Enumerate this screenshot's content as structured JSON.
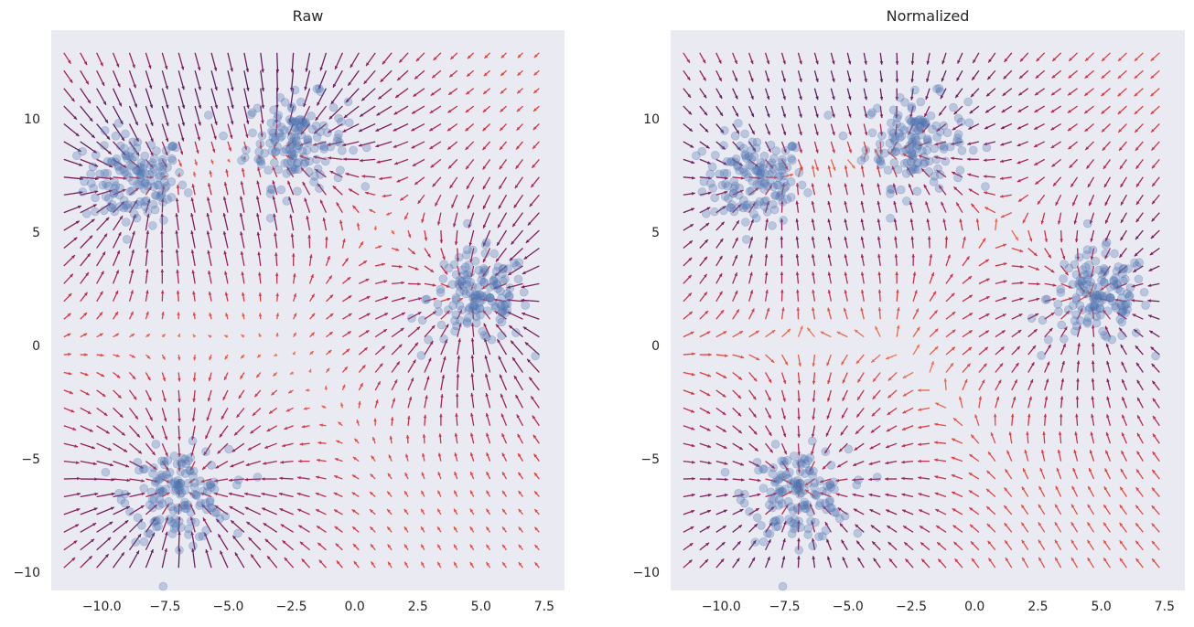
{
  "chart_data": [
    {
      "type": "scatter",
      "subtype": "quiver-with-scatter",
      "title": "Raw",
      "xlabel": "",
      "ylabel": "",
      "xlim": [
        -12.0,
        8.3
      ],
      "ylim": [
        -10.8,
        13.9
      ],
      "xticks": [
        -10.0,
        -7.5,
        -5.0,
        -2.5,
        0.0,
        2.5,
        5.0,
        7.5
      ],
      "xtick_labels": [
        "−10.0",
        "−7.5",
        "−5.0",
        "−2.5",
        "0.0",
        "2.5",
        "5.0",
        "7.5"
      ],
      "yticks": [
        -10,
        -5,
        0,
        5,
        10
      ],
      "ytick_labels": [
        "−10",
        "−5",
        "0",
        "5",
        "10"
      ],
      "grid": false,
      "background": "#eaeaf2",
      "point_color": "#4c72b0",
      "arrow_colormap": [
        "#5b1e5e",
        "#a3215a",
        "#e0383d",
        "#f07a50"
      ],
      "arrow_normalized": false,
      "quiver_grid": {
        "x_range": [
          -11.5,
          7.3
        ],
        "y_range": [
          -9.8,
          12.9
        ],
        "nx": 30,
        "ny": 30
      },
      "clusters": [
        {
          "center": [
            -8.7,
            7.3
          ],
          "n_points": 150
        },
        {
          "center": [
            -2.3,
            9.0
          ],
          "n_points": 150
        },
        {
          "center": [
            4.9,
            2.1
          ],
          "n_points": 150
        },
        {
          "center": [
            -7.0,
            -6.6
          ],
          "n_points": 150
        }
      ]
    },
    {
      "type": "scatter",
      "subtype": "quiver-with-scatter",
      "title": "Normalized",
      "xlabel": "",
      "ylabel": "",
      "xlim": [
        -12.0,
        8.3
      ],
      "ylim": [
        -10.8,
        13.9
      ],
      "xticks": [
        -10.0,
        -7.5,
        -5.0,
        -2.5,
        0.0,
        2.5,
        5.0,
        7.5
      ],
      "xtick_labels": [
        "−10.0",
        "−7.5",
        "−5.0",
        "−2.5",
        "0.0",
        "2.5",
        "5.0",
        "7.5"
      ],
      "yticks": [
        -10,
        -5,
        0,
        5,
        10
      ],
      "ytick_labels": [
        "−10",
        "−5",
        "0",
        "5",
        "10"
      ],
      "grid": false,
      "background": "#eaeaf2",
      "point_color": "#4c72b0",
      "arrow_colormap": [
        "#5b1e5e",
        "#a3215a",
        "#e0383d",
        "#f07a50"
      ],
      "arrow_normalized": true,
      "quiver_grid": {
        "x_range": [
          -11.5,
          7.3
        ],
        "y_range": [
          -9.8,
          12.9
        ],
        "nx": 30,
        "ny": 30
      },
      "clusters": [
        {
          "center": [
            -8.7,
            7.3
          ],
          "n_points": 150
        },
        {
          "center": [
            -2.3,
            9.0
          ],
          "n_points": 150
        },
        {
          "center": [
            4.9,
            2.1
          ],
          "n_points": 150
        },
        {
          "center": [
            -7.0,
            -6.6
          ],
          "n_points": 150
        }
      ]
    }
  ]
}
